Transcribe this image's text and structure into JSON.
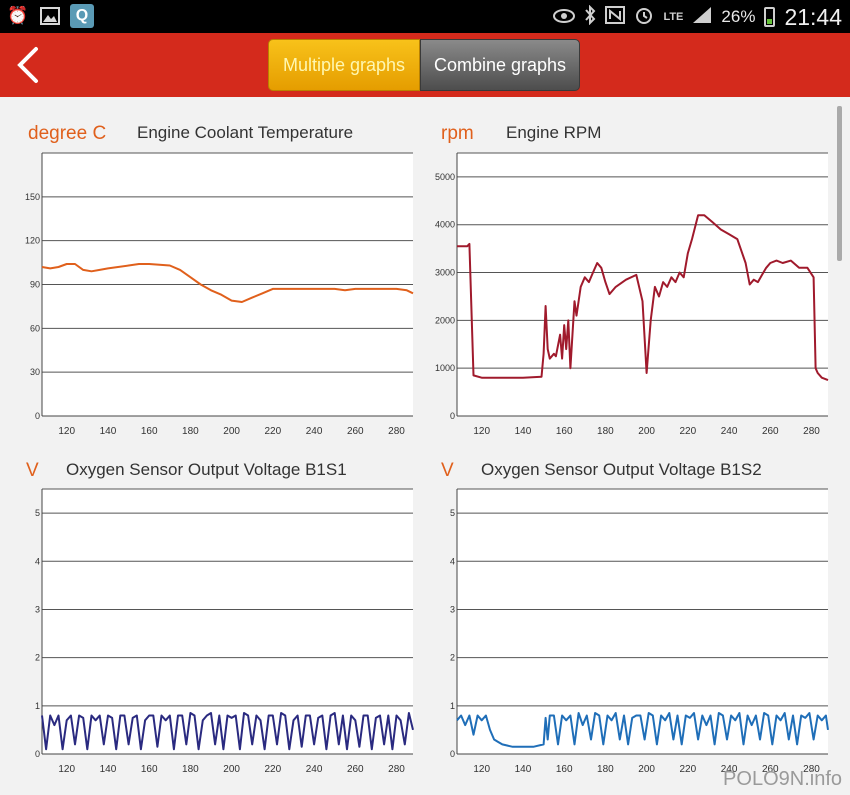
{
  "status_bar": {
    "left_icons": [
      "alarm-clock-icon",
      "picture-icon",
      "q-app-icon"
    ],
    "q_label": "Q",
    "network": "LTE",
    "battery": "26%",
    "time": "21:44"
  },
  "app_bar": {
    "tabs": [
      {
        "label": "Multiple graphs",
        "active": true
      },
      {
        "label": "Combine graphs",
        "active": false
      }
    ]
  },
  "charts": [
    {
      "unit": "degree C",
      "title": "Engine Coolant Temperature",
      "y_ticks": [
        "0",
        "30",
        "60",
        "90",
        "120",
        "150"
      ],
      "x_ticks": [
        "120",
        "140",
        "160",
        "180",
        "200",
        "220",
        "240",
        "260",
        "280"
      ]
    },
    {
      "unit": "rpm",
      "title": "Engine RPM",
      "y_ticks": [
        "0",
        "1000",
        "2000",
        "3000",
        "4000",
        "5000"
      ],
      "x_ticks": [
        "120",
        "140",
        "160",
        "180",
        "200",
        "220",
        "240",
        "260",
        "280"
      ]
    },
    {
      "unit": "V",
      "title": "Oxygen Sensor Output Voltage B1S1",
      "y_ticks": [
        "0",
        "1",
        "2",
        "3",
        "4",
        "5"
      ],
      "x_ticks": [
        "120",
        "140",
        "160",
        "180",
        "200",
        "220",
        "240",
        "260",
        "280"
      ]
    },
    {
      "unit": "V",
      "title": "Oxygen Sensor Output Voltage B1S2",
      "y_ticks": [
        "0",
        "1",
        "2",
        "3",
        "4",
        "5"
      ],
      "x_ticks": [
        "120",
        "140",
        "160",
        "180",
        "200",
        "220",
        "240",
        "260",
        "280"
      ]
    }
  ],
  "watermark": "POLO9N.info",
  "chart_data": [
    {
      "type": "line",
      "title": "Engine Coolant Temperature",
      "ylabel": "degree C",
      "xlim": [
        108,
        288
      ],
      "ylim": [
        0,
        180
      ],
      "color": "#e0601c",
      "x": [
        108,
        112,
        116,
        120,
        124,
        128,
        132,
        136,
        140,
        150,
        155,
        160,
        170,
        175,
        180,
        185,
        190,
        195,
        200,
        205,
        210,
        215,
        220,
        230,
        240,
        250,
        255,
        260,
        270,
        280,
        285,
        288
      ],
      "y": [
        102,
        101,
        102,
        104,
        104,
        100,
        99,
        100,
        101,
        103,
        104,
        104,
        103,
        100,
        95,
        90,
        86,
        83,
        79,
        78,
        81,
        84,
        87,
        87,
        87,
        87,
        86,
        87,
        87,
        87,
        86,
        84
      ]
    },
    {
      "type": "line",
      "title": "Engine RPM",
      "ylabel": "rpm",
      "xlim": [
        108,
        288
      ],
      "ylim": [
        0,
        5500
      ],
      "color": "#a01a2c",
      "x": [
        108,
        113,
        114,
        116,
        120,
        130,
        140,
        149,
        150,
        151,
        152,
        153,
        155,
        156,
        158,
        159,
        160,
        161,
        162,
        163,
        165,
        166,
        168,
        170,
        172,
        174,
        176,
        178,
        180,
        182,
        185,
        190,
        195,
        198,
        200,
        202,
        204,
        206,
        208,
        210,
        212,
        214,
        216,
        218,
        220,
        222,
        225,
        228,
        232,
        236,
        240,
        244,
        248,
        250,
        252,
        254,
        256,
        258,
        260,
        263,
        266,
        270,
        274,
        278,
        281,
        282,
        283,
        285,
        288
      ],
      "y": [
        3550,
        3550,
        3600,
        850,
        800,
        800,
        800,
        820,
        1300,
        2300,
        1400,
        1200,
        1300,
        1250,
        1700,
        1200,
        1900,
        1400,
        2000,
        1000,
        2400,
        2100,
        2700,
        2900,
        2800,
        3000,
        3200,
        3100,
        2800,
        2550,
        2700,
        2850,
        2950,
        2400,
        900,
        2000,
        2700,
        2500,
        2800,
        2700,
        2900,
        2800,
        3000,
        2900,
        3400,
        3700,
        4200,
        4200,
        4050,
        3900,
        3800,
        3700,
        3200,
        2750,
        2850,
        2800,
        2950,
        3100,
        3200,
        3250,
        3200,
        3250,
        3100,
        3100,
        2900,
        1000,
        900,
        800,
        750
      ]
    },
    {
      "type": "line",
      "title": "Oxygen Sensor Output Voltage B1S1",
      "ylabel": "V",
      "xlim": [
        108,
        288
      ],
      "ylim": [
        0,
        5.5
      ],
      "color": "#2a2a80",
      "x": [
        108,
        110,
        112,
        114,
        116,
        118,
        120,
        122,
        124,
        126,
        128,
        130,
        132,
        134,
        136,
        138,
        140,
        142,
        144,
        146,
        148,
        150,
        152,
        154,
        156,
        158,
        160,
        162,
        164,
        166,
        168,
        170,
        172,
        174,
        176,
        178,
        180,
        182,
        184,
        186,
        188,
        190,
        192,
        194,
        196,
        198,
        200,
        202,
        204,
        206,
        208,
        210,
        212,
        214,
        216,
        218,
        220,
        222,
        224,
        226,
        228,
        230,
        232,
        234,
        236,
        238,
        240,
        242,
        244,
        246,
        248,
        250,
        252,
        254,
        256,
        258,
        260,
        262,
        264,
        266,
        268,
        270,
        272,
        274,
        276,
        278,
        280,
        282,
        284,
        286,
        288
      ],
      "y": [
        0.8,
        0.1,
        0.8,
        0.6,
        0.8,
        0.1,
        0.7,
        0.8,
        0.2,
        0.8,
        0.75,
        0.1,
        0.8,
        0.7,
        0.8,
        0.2,
        0.8,
        0.75,
        0.1,
        0.8,
        0.8,
        0.2,
        0.75,
        0.8,
        0.1,
        0.7,
        0.8,
        0.8,
        0.15,
        0.8,
        0.7,
        0.8,
        0.1,
        0.8,
        0.8,
        0.2,
        0.85,
        0.8,
        0.1,
        0.7,
        0.8,
        0.85,
        0.2,
        0.8,
        0.1,
        0.8,
        0.75,
        0.8,
        0.1,
        0.85,
        0.8,
        0.2,
        0.8,
        0.7,
        0.1,
        0.8,
        0.8,
        0.2,
        0.85,
        0.8,
        0.1,
        0.7,
        0.8,
        0.15,
        0.8,
        0.8,
        0.2,
        0.75,
        0.8,
        0.1,
        0.8,
        0.85,
        0.2,
        0.8,
        0.1,
        0.8,
        0.7,
        0.15,
        0.8,
        0.8,
        0.1,
        0.75,
        0.8,
        0.2,
        0.8,
        0.1,
        0.8,
        0.7,
        0.2,
        0.85,
        0.5
      ]
    },
    {
      "type": "line",
      "title": "Oxygen Sensor Output Voltage B1S2",
      "ylabel": "V",
      "xlim": [
        108,
        288
      ],
      "ylim": [
        0,
        5.5
      ],
      "color": "#1f6eb8",
      "x": [
        108,
        110,
        112,
        114,
        116,
        118,
        120,
        122,
        124,
        126,
        128,
        130,
        135,
        140,
        145,
        150,
        151,
        152,
        153,
        155,
        157,
        159,
        161,
        163,
        165,
        167,
        169,
        171,
        173,
        175,
        177,
        179,
        181,
        183,
        185,
        187,
        189,
        191,
        193,
        195,
        197,
        199,
        201,
        203,
        205,
        207,
        209,
        211,
        213,
        215,
        217,
        219,
        221,
        223,
        225,
        227,
        229,
        231,
        233,
        235,
        237,
        239,
        241,
        243,
        245,
        247,
        249,
        251,
        253,
        255,
        257,
        259,
        261,
        263,
        265,
        267,
        269,
        271,
        273,
        275,
        277,
        279,
        281,
        283,
        285,
        287,
        288
      ],
      "y": [
        0.7,
        0.8,
        0.6,
        0.8,
        0.4,
        0.8,
        0.7,
        0.8,
        0.5,
        0.3,
        0.25,
        0.2,
        0.15,
        0.15,
        0.15,
        0.2,
        0.75,
        0.3,
        0.8,
        0.8,
        0.2,
        0.8,
        0.7,
        0.8,
        0.2,
        0.85,
        0.6,
        0.8,
        0.3,
        0.85,
        0.8,
        0.2,
        0.8,
        0.7,
        0.85,
        0.3,
        0.8,
        0.2,
        0.75,
        0.8,
        0.8,
        0.3,
        0.85,
        0.8,
        0.2,
        0.8,
        0.7,
        0.85,
        0.3,
        0.8,
        0.2,
        0.8,
        0.75,
        0.85,
        0.3,
        0.8,
        0.6,
        0.8,
        0.2,
        0.85,
        0.8,
        0.3,
        0.8,
        0.7,
        0.85,
        0.2,
        0.8,
        0.6,
        0.8,
        0.3,
        0.85,
        0.8,
        0.2,
        0.8,
        0.7,
        0.85,
        0.3,
        0.8,
        0.2,
        0.8,
        0.75,
        0.85,
        0.3,
        0.8,
        0.7,
        0.8,
        0.5
      ]
    }
  ]
}
